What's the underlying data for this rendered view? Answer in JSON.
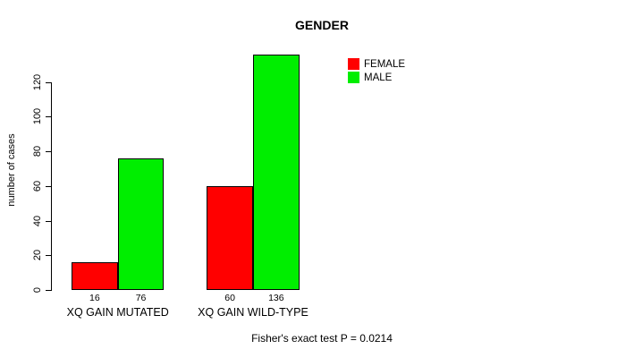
{
  "title": "GENDER",
  "ylabel": "number of cases",
  "annotation": "Fisher's exact test P = 0.0214",
  "legend": [
    {
      "label": "FEMALE",
      "color": "#ff0000"
    },
    {
      "label": "MALE",
      "color": "#00ee00"
    }
  ],
  "chart_data": {
    "type": "bar",
    "title": "GENDER",
    "xlabel": "",
    "ylabel": "number of cases",
    "categories": [
      "XQ GAIN MUTATED",
      "XQ GAIN WILD-TYPE"
    ],
    "series": [
      {
        "name": "FEMALE",
        "color": "#ff0000",
        "values": [
          16,
          60
        ]
      },
      {
        "name": "MALE",
        "color": "#00ee00",
        "values": [
          76,
          136
        ]
      }
    ],
    "bar_value_labels": [
      [
        "16",
        "76"
      ],
      [
        "60",
        "136"
      ]
    ],
    "yticks": [
      0,
      20,
      40,
      60,
      80,
      100,
      120
    ],
    "ylim": [
      0,
      140
    ],
    "grid": false,
    "legend_position": "top-right",
    "annotation": "Fisher's exact test P = 0.0214"
  }
}
